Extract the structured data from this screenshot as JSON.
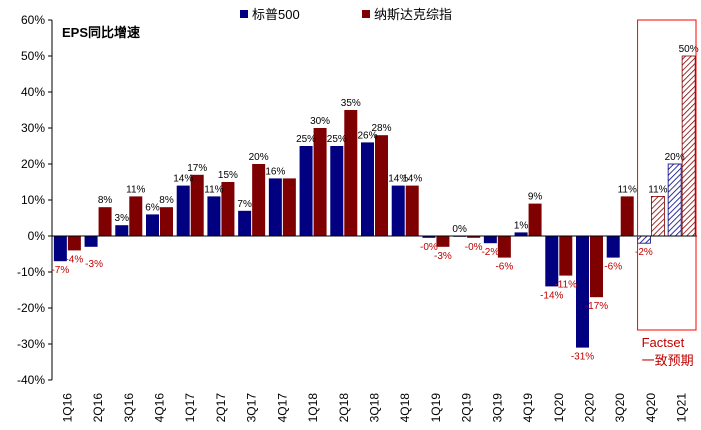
{
  "chart_data": {
    "type": "bar",
    "title": "EPS同比增速",
    "categories": [
      "1Q16",
      "2Q16",
      "3Q16",
      "4Q16",
      "1Q17",
      "2Q17",
      "3Q17",
      "4Q17",
      "1Q18",
      "2Q18",
      "3Q18",
      "4Q18",
      "1Q19",
      "2Q19",
      "3Q19",
      "4Q19",
      "1Q20",
      "2Q20",
      "3Q20",
      "4Q20",
      "1Q21"
    ],
    "series": [
      {
        "name": "标普500",
        "color": "#000080",
        "values": [
          -7,
          -3,
          3,
          6,
          14,
          11,
          7,
          16,
          25,
          25,
          26,
          14,
          -0.5,
          0,
          -2,
          1,
          -14,
          -31,
          -6,
          -2,
          20
        ],
        "labels": [
          "-7%",
          null,
          "3%",
          "6%",
          "14%",
          "11%",
          "7%",
          "16%",
          "25%",
          "25%",
          "26%",
          "14%",
          "-0%",
          "0%",
          "-2%",
          "1%",
          "-14%",
          "-31%",
          "-6%",
          "-2%",
          "20%"
        ]
      },
      {
        "name": "纳斯达克综指",
        "color": "#7f0000",
        "values": [
          -4,
          8,
          11,
          8,
          17,
          15,
          20,
          16,
          30,
          35,
          28,
          14,
          -3,
          -0.5,
          -6,
          9,
          -11,
          -17,
          11,
          11,
          50
        ],
        "labels": [
          "-4%",
          "8%",
          "11%",
          "8%",
          "17%",
          "15%",
          "20%",
          null,
          "30%",
          "35%",
          "28%",
          "14%",
          "-3%",
          "-0%",
          "-6%",
          "9%",
          "-11%",
          "-17%",
          "11%",
          "11%",
          "50%"
        ]
      }
    ],
    "extra_labels": [
      {
        "category": "2Q16",
        "series": 0,
        "text": "-3%"
      }
    ],
    "forecast_categories": [
      "4Q20",
      "1Q21"
    ],
    "forecast_label": [
      "Factset",
      "一致预期"
    ],
    "ylim": [
      -40,
      60
    ],
    "yticks": [
      -40,
      -30,
      -20,
      -10,
      0,
      10,
      20,
      30,
      40,
      50,
      60
    ],
    "ytick_labels": [
      "-40%",
      "-30%",
      "-20%",
      "-10%",
      "0%",
      "10%",
      "20%",
      "30%",
      "40%",
      "50%",
      "60%"
    ],
    "legend": "top-center",
    "grid": false
  }
}
